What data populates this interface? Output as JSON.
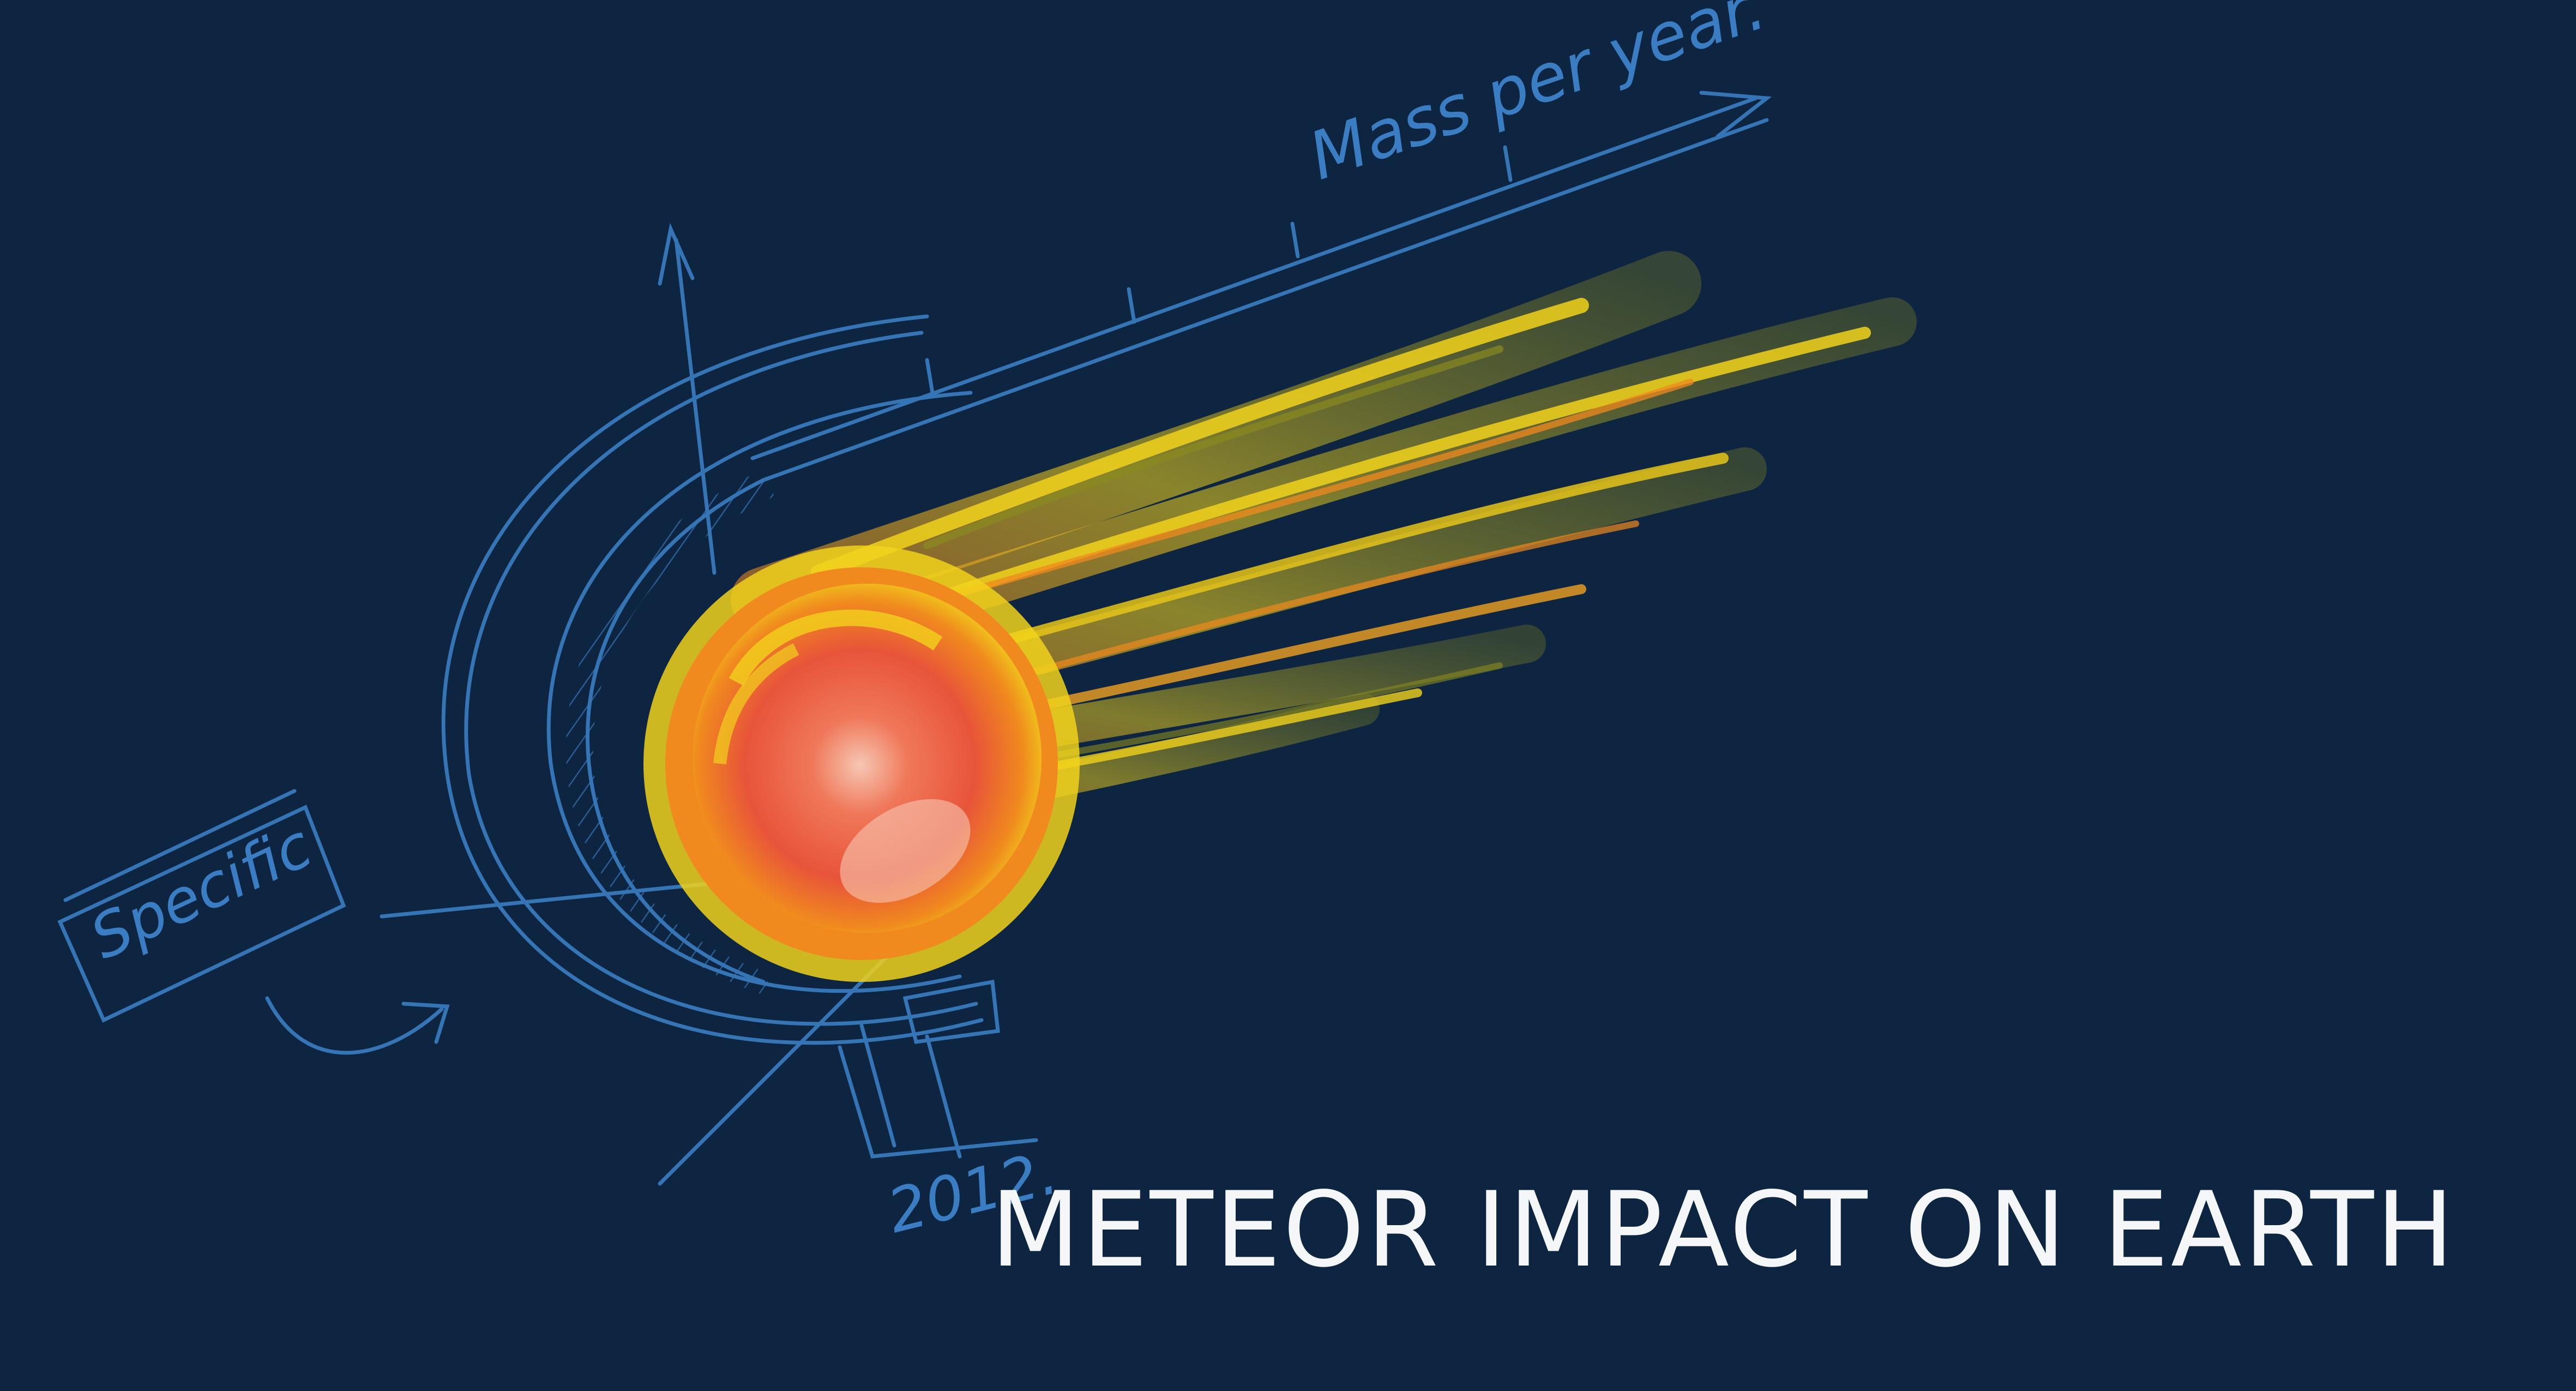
{
  "title": "METEOR IMPACT ON EARTH",
  "sketch": {
    "axis_label": "Mass per year.",
    "box_label": "Specific",
    "year": "2012."
  },
  "colors": {
    "background": "#0d2540",
    "sketch": "#3a7dc2",
    "title": "#f4f6f8",
    "flame_yellow": "#f1d21c",
    "flame_orange": "#f08a1e",
    "core_red": "#e8543a"
  },
  "icons": {
    "meteor": "meteor-icon"
  }
}
